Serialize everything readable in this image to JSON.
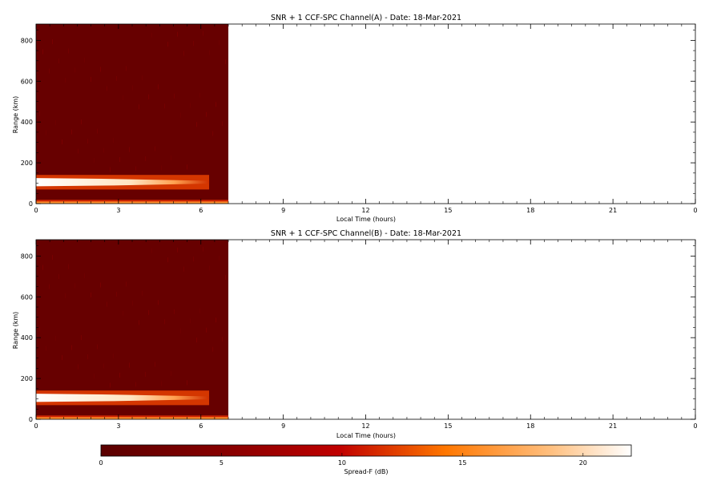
{
  "chart_data": [
    {
      "type": "heatmap",
      "title": "SNR + 1 CCF-SPC Channel(A) - Date: 18-Mar-2021",
      "xlabel": "Local Time (hours)",
      "ylabel": "Range (km)",
      "xlim": [
        0,
        24
      ],
      "ylim": [
        0,
        880
      ],
      "xticks": [
        "0",
        "3",
        "6",
        "9",
        "12",
        "15",
        "18",
        "21",
        "0"
      ],
      "yticks": [
        "0",
        "200",
        "400",
        "600",
        "800"
      ],
      "data_extent_hours": [
        0,
        7.0
      ],
      "background_level_db": 1.5,
      "layers": [
        {
          "name": "E-region echo",
          "range_km": [
            85,
            125
          ],
          "time_hours": [
            0,
            6.3
          ],
          "peak_db": 22
        },
        {
          "name": "ground clutter",
          "range_km": [
            0,
            18
          ],
          "time_hours": [
            0,
            7.0
          ],
          "peak_db": 16
        }
      ]
    },
    {
      "type": "heatmap",
      "title": "SNR + 1 CCF-SPC Channel(B) - Date: 18-Mar-2021",
      "xlabel": "Local Time (hours)",
      "ylabel": "Range (km)",
      "xlim": [
        0,
        24
      ],
      "ylim": [
        0,
        880
      ],
      "xticks": [
        "0",
        "3",
        "6",
        "9",
        "12",
        "15",
        "18",
        "21",
        "0"
      ],
      "yticks": [
        "0",
        "200",
        "400",
        "600",
        "800"
      ],
      "data_extent_hours": [
        0,
        7.0
      ],
      "background_level_db": 1.5,
      "layers": [
        {
          "name": "E-region echo",
          "range_km": [
            85,
            125
          ],
          "time_hours": [
            0,
            6.3
          ],
          "peak_db": 22
        },
        {
          "name": "ground clutter",
          "range_km": [
            0,
            18
          ],
          "time_hours": [
            0,
            7.0
          ],
          "peak_db": 16
        }
      ]
    }
  ],
  "colorbar": {
    "label": "Spread-F (dB)",
    "min": 0,
    "max": 22,
    "ticks": [
      "0",
      "5",
      "10",
      "15",
      "20"
    ],
    "colors": [
      "#5a0000",
      "#b00000",
      "#ff6600",
      "#ffa64d",
      "#ffffff"
    ]
  }
}
